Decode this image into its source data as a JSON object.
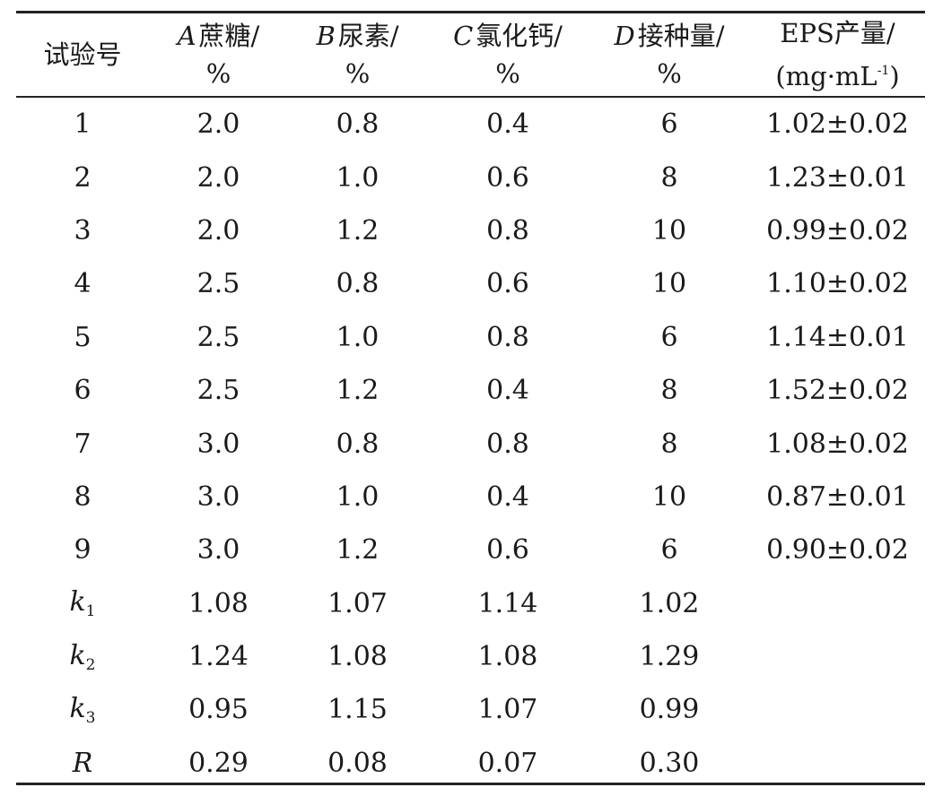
{
  "header": {
    "trial": "试验号",
    "a_letter": "A",
    "a_name": "蔗糖/",
    "a_unit": "%",
    "b_letter": "B",
    "b_name": "尿素/",
    "b_unit": "%",
    "c_letter": "C",
    "c_name": "氯化钙/",
    "c_unit": "%",
    "d_letter": "D",
    "d_name": "接种量/",
    "d_unit": "%",
    "eps_name": "EPS产量/",
    "eps_unit_pre": "(mg·mL",
    "eps_unit_sup": "-1",
    "eps_unit_post": ")"
  },
  "rows": [
    {
      "no": "1",
      "a": "2.0",
      "b": "0.8",
      "c": "0.4",
      "d": "6",
      "eps": "1.02±0.02"
    },
    {
      "no": "2",
      "a": "2.0",
      "b": "1.0",
      "c": "0.6",
      "d": "8",
      "eps": "1.23±0.01"
    },
    {
      "no": "3",
      "a": "2.0",
      "b": "1.2",
      "c": "0.8",
      "d": "10",
      "eps": "0.99±0.02"
    },
    {
      "no": "4",
      "a": "2.5",
      "b": "0.8",
      "c": "0.6",
      "d": "10",
      "eps": "1.10±0.02"
    },
    {
      "no": "5",
      "a": "2.5",
      "b": "1.0",
      "c": "0.8",
      "d": "6",
      "eps": "1.14±0.01"
    },
    {
      "no": "6",
      "a": "2.5",
      "b": "1.2",
      "c": "0.4",
      "d": "8",
      "eps": "1.52±0.02"
    },
    {
      "no": "7",
      "a": "3.0",
      "b": "0.8",
      "c": "0.8",
      "d": "8",
      "eps": "1.08±0.02"
    },
    {
      "no": "8",
      "a": "3.0",
      "b": "1.0",
      "c": "0.4",
      "d": "10",
      "eps": "0.87±0.01"
    },
    {
      "no": "9",
      "a": "3.0",
      "b": "1.2",
      "c": "0.6",
      "d": "6",
      "eps": "0.90±0.02"
    }
  ],
  "stats": [
    {
      "letter": "k",
      "sub": "1",
      "a": "1.08",
      "b": "1.07",
      "c": "1.14",
      "d": "1.02"
    },
    {
      "letter": "k",
      "sub": "2",
      "a": "1.24",
      "b": "1.08",
      "c": "1.08",
      "d": "1.29"
    },
    {
      "letter": "k",
      "sub": "3",
      "a": "0.95",
      "b": "1.15",
      "c": "1.07",
      "d": "0.99"
    },
    {
      "letter": "R",
      "sub": "",
      "a": "0.29",
      "b": "0.08",
      "c": "0.07",
      "d": "0.30"
    }
  ]
}
